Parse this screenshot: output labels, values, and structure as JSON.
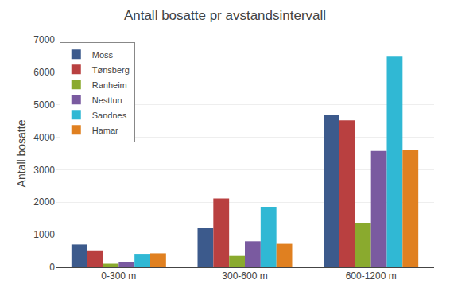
{
  "chart_data": {
    "type": "bar",
    "title": "Antall bosatte pr avstandsintervall",
    "ylabel": "Antall bosatte",
    "categories": [
      "0-300 m",
      "300-600 m",
      "600-1200 m"
    ],
    "series": [
      {
        "name": "Moss",
        "color": "#3c5a8c",
        "values": [
          700,
          1200,
          4700
        ]
      },
      {
        "name": "Tønsberg",
        "color": "#b94040",
        "values": [
          520,
          2120,
          4520
        ]
      },
      {
        "name": "Ranheim",
        "color": "#8aaa2e",
        "values": [
          110,
          350,
          1370
        ]
      },
      {
        "name": "Nesttun",
        "color": "#7a5aa0",
        "values": [
          170,
          800,
          3580
        ]
      },
      {
        "name": "Sandnes",
        "color": "#30b8d4",
        "values": [
          390,
          1860,
          6480
        ]
      },
      {
        "name": "Hamar",
        "color": "#e08020",
        "values": [
          430,
          720,
          3600
        ]
      }
    ],
    "ylim": [
      0,
      7000
    ],
    "yticks": [
      0,
      1000,
      2000,
      3000,
      4000,
      5000,
      6000,
      7000
    ],
    "grid": true,
    "legend": "upper left"
  }
}
